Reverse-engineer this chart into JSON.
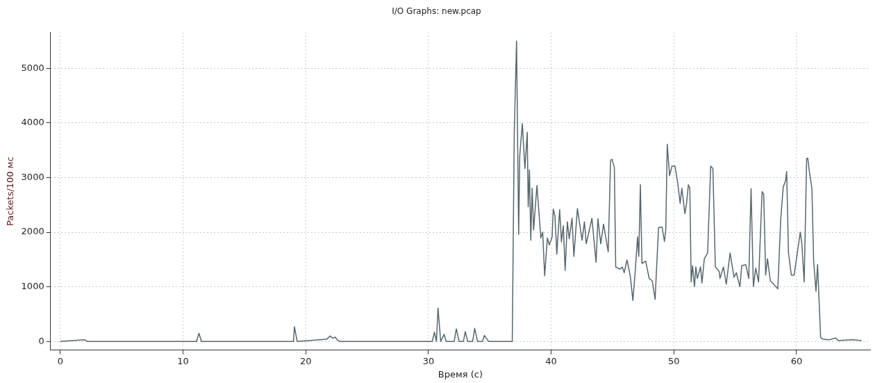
{
  "chart_data": {
    "type": "line",
    "title": "I/O Graphs: new.pcap",
    "xlabel": "Время (с)",
    "ylabel": "Packets/100 мс",
    "xlim": [
      -0.8,
      66
    ],
    "ylim": [
      -160,
      5660
    ],
    "xticks": [
      0,
      10,
      20,
      30,
      40,
      50,
      60
    ],
    "yticks": [
      0,
      1000,
      2000,
      3000,
      4000,
      5000
    ],
    "grid": true,
    "legend": false,
    "marker": "none",
    "line_style": "solid",
    "series": [
      {
        "color": "#56666c",
        "x": [
          0,
          2.0,
          2.2,
          11.1,
          11.3,
          11.5,
          19.0,
          19.08,
          19.3,
          21.7,
          22.0,
          22.2,
          22.4,
          22.6,
          22.8,
          30.3,
          30.49,
          30.65,
          30.78,
          31.0,
          31.27,
          31.45,
          32.1,
          32.27,
          32.5,
          32.85,
          33.0,
          33.2,
          33.6,
          33.77,
          34.0,
          34.4,
          34.56,
          34.9,
          36.83,
          36.99,
          37.18,
          37.35,
          37.44,
          37.65,
          37.86,
          38.05,
          38.13,
          38.23,
          38.34,
          38.45,
          38.57,
          38.84,
          39.16,
          39.31,
          39.47,
          39.69,
          39.85,
          40.08,
          40.17,
          40.31,
          40.46,
          40.69,
          40.84,
          40.99,
          41.14,
          41.32,
          41.47,
          41.7,
          41.85,
          42.14,
          42.52,
          42.71,
          42.86,
          43.32,
          43.66,
          43.81,
          44.04,
          44.27,
          44.65,
          44.84,
          44.96,
          45.15,
          45.26,
          45.61,
          45.8,
          45.95,
          46.18,
          46.45,
          46.66,
          46.85,
          47.04,
          47.14,
          47.27,
          47.4,
          47.7,
          47.99,
          48.24,
          48.47,
          48.75,
          49.04,
          49.23,
          49.34,
          49.46,
          49.65,
          49.84,
          50.09,
          50.32,
          50.51,
          50.65,
          50.9,
          51.03,
          51.18,
          51.3,
          51.41,
          51.52,
          51.68,
          51.79,
          51.91,
          52.17,
          52.29,
          52.48,
          52.75,
          53.0,
          53.18,
          53.38,
          53.7,
          53.76,
          54.04,
          54.27,
          54.58,
          54.9,
          55.09,
          55.38,
          55.53,
          55.86,
          56.1,
          56.29,
          56.48,
          56.67,
          56.9,
          57.19,
          57.32,
          57.48,
          57.63,
          57.86,
          58.14,
          58.47,
          58.71,
          58.91,
          59.1,
          59.19,
          59.34,
          59.57,
          59.8,
          60.3,
          60.43,
          60.62,
          60.82,
          60.91,
          61.06,
          61.25,
          61.39,
          61.58,
          61.71,
          61.96,
          62.15,
          62.63,
          63.2,
          63.39,
          64.53,
          65.29
        ],
        "values": [
          0,
          30,
          0,
          0,
          150,
          0,
          0,
          270,
          0,
          40,
          100,
          60,
          80,
          20,
          0,
          0,
          170,
          0,
          610,
          0,
          130,
          0,
          0,
          230,
          0,
          0,
          180,
          0,
          0,
          240,
          0,
          0,
          110,
          0,
          0,
          3780,
          5496,
          1958,
          3400,
          3990,
          3165,
          3830,
          2466,
          3144,
          1852,
          2805,
          2042,
          2856,
          1894,
          2000,
          1203,
          1894,
          1767,
          1915,
          2424,
          2297,
          1597,
          2415,
          1822,
          2119,
          1301,
          2191,
          1881,
          2254,
          1555,
          2432,
          1852,
          2191,
          1788,
          2254,
          1449,
          2246,
          1788,
          2148,
          1640,
          3314,
          3335,
          3186,
          1364,
          1322,
          1364,
          1258,
          1492,
          1195,
          750,
          1280,
          1915,
          1555,
          2869,
          1428,
          1470,
          1153,
          1110,
          771,
          2085,
          2093,
          1831,
          2042,
          3610,
          3038,
          3208,
          3208,
          2890,
          2530,
          2805,
          2339,
          2517,
          2869,
          2805,
          1089,
          1386,
          1004,
          1364,
          1153,
          1364,
          1068,
          1513,
          1619,
          3208,
          3165,
          1364,
          1280,
          1153,
          1364,
          1047,
          1619,
          1174,
          1258,
          1004,
          1386,
          1407,
          1153,
          2797,
          1004,
          1343,
          1089,
          2742,
          2699,
          1216,
          1513,
          1110,
          1047,
          962,
          2254,
          2826,
          2941,
          3110,
          1619,
          1216,
          1216,
          2000,
          1788,
          1089,
          3347,
          3356,
          3080,
          2805,
          1470,
          919,
          1407,
          72,
          42,
          30,
          64,
          17,
          30,
          17
        ]
      }
    ]
  }
}
